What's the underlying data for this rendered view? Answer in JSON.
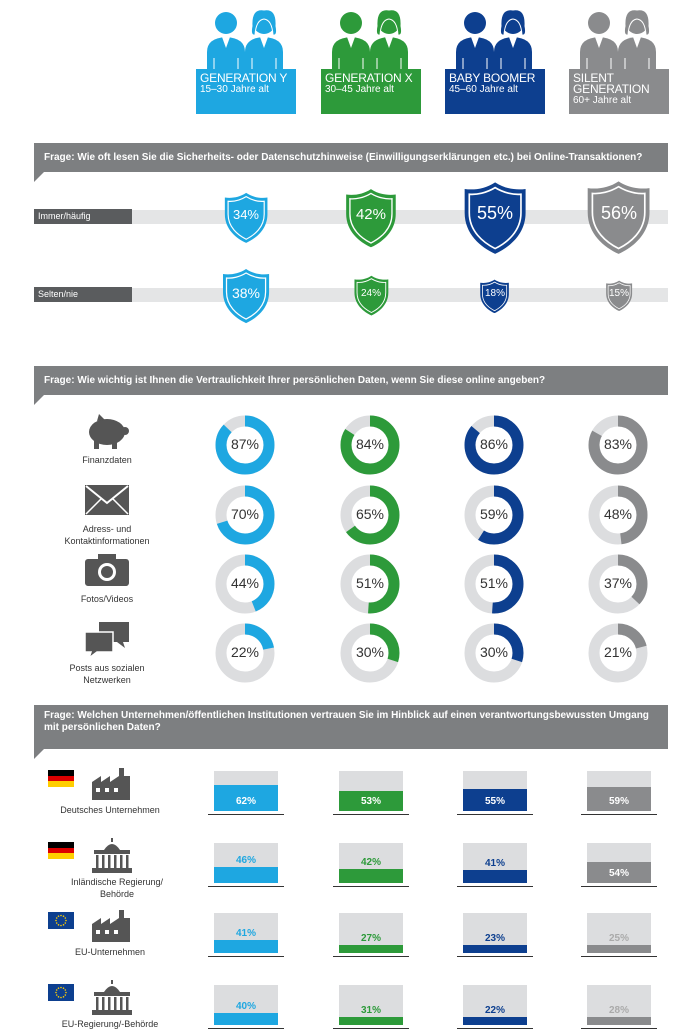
{
  "generations": [
    {
      "name": "GENERATION Y",
      "age": "15–30 Jahre alt",
      "color": "#1ea7e1"
    },
    {
      "name": "GENERATION X",
      "age": "30–45 Jahre alt",
      "color": "#2d9a3a"
    },
    {
      "name": "BABY BOOMER",
      "age": "45–60 Jahre alt",
      "color": "#0d3f8f"
    },
    {
      "name": "SILENT GENERATION",
      "age": "60+ Jahre alt",
      "color": "#8a8b8d"
    }
  ],
  "section1": {
    "question": "Frage:  Wie oft lesen Sie die Sicherheits- oder Datenschutzhinweise (Einwilligungserklärungen etc.) bei Online-Transaktionen?",
    "rows": [
      {
        "label": "Immer/häufig",
        "values": [
          "34%",
          "42%",
          "55%",
          "56%"
        ]
      },
      {
        "label": "Selten/nie",
        "values": [
          "38%",
          "24%",
          "18%",
          "15%"
        ]
      }
    ]
  },
  "section2": {
    "question": "Frage:  Wie wichtig ist Ihnen die Vertraulichkeit Ihrer persönlichen Daten, wenn Sie diese online angeben?",
    "rows": [
      {
        "label": "Finanzdaten",
        "icon": "piggy-bank-icon",
        "values": [
          "87%",
          "84%",
          "86%",
          "83%"
        ]
      },
      {
        "label": "Adress- und Kontaktinformationen",
        "icon": "envelope-icon",
        "values": [
          "70%",
          "65%",
          "59%",
          "48%"
        ]
      },
      {
        "label": "Fotos/Videos",
        "icon": "camera-icon",
        "values": [
          "44%",
          "51%",
          "51%",
          "37%"
        ]
      },
      {
        "label": "Posts aus sozialen Netzwerken",
        "icon": "speech-bubbles-icon",
        "values": [
          "22%",
          "30%",
          "30%",
          "21%"
        ]
      }
    ]
  },
  "section3": {
    "question": "Frage: Welchen Unternehmen/öffentlichen Institutionen vertrauen Sie im Hinblick auf einen verantwortungsbewussten Umgang mit persönlichen Daten?",
    "rows": [
      {
        "label": "Deutsches Unternehmen",
        "flag": "germany-flag-icon",
        "icon": "factory-icon",
        "values": [
          "62%",
          "53%",
          "55%",
          "59%"
        ]
      },
      {
        "label": "Inländische Regierung/ Behörde",
        "flag": "germany-flag-icon",
        "icon": "government-building-icon",
        "values": [
          "46%",
          "42%",
          "41%",
          "54%"
        ]
      },
      {
        "label": "EU-Unternehmen",
        "flag": "eu-flag-icon",
        "icon": "factory-icon",
        "values": [
          "41%",
          "27%",
          "23%",
          "25%"
        ]
      },
      {
        "label": "EU-Regierung/-Behörde",
        "flag": "eu-flag-icon",
        "icon": "government-building-icon",
        "values": [
          "40%",
          "31%",
          "22%",
          "28%"
        ]
      }
    ]
  },
  "chart_data": [
    {
      "type": "bar",
      "title": "Wie oft lesen Sie die Sicherheits- oder Datenschutzhinweise (Einwilligungserklärungen etc.) bei Online-Transaktionen?",
      "categories": [
        "GENERATION Y",
        "GENERATION X",
        "BABY BOOMER",
        "SILENT GENERATION"
      ],
      "series": [
        {
          "name": "Immer/häufig",
          "values": [
            34,
            42,
            55,
            56
          ]
        },
        {
          "name": "Selten/nie",
          "values": [
            38,
            24,
            18,
            15
          ]
        }
      ]
    },
    {
      "type": "pie",
      "title": "Wie wichtig ist Ihnen die Vertraulichkeit Ihrer persönlichen Daten, wenn Sie diese online angeben?",
      "categories": [
        "GENERATION Y",
        "GENERATION X",
        "BABY BOOMER",
        "SILENT GENERATION"
      ],
      "series": [
        {
          "name": "Finanzdaten",
          "values": [
            87,
            84,
            86,
            83
          ]
        },
        {
          "name": "Adress- und Kontaktinformationen",
          "values": [
            70,
            65,
            59,
            48
          ]
        },
        {
          "name": "Fotos/Videos",
          "values": [
            44,
            51,
            51,
            37
          ]
        },
        {
          "name": "Posts aus sozialen Netzwerken",
          "values": [
            22,
            30,
            30,
            21
          ]
        }
      ]
    },
    {
      "type": "bar",
      "title": "Welchen Unternehmen/öffentlichen Institutionen vertrauen Sie im Hinblick auf einen verantwortungsbewussten Umgang mit persönlichen Daten?",
      "categories": [
        "GENERATION Y",
        "GENERATION X",
        "BABY BOOMER",
        "SILENT GENERATION"
      ],
      "series": [
        {
          "name": "Deutsches Unternehmen",
          "values": [
            62,
            53,
            55,
            59
          ]
        },
        {
          "name": "Inländische Regierung/ Behörde",
          "values": [
            46,
            42,
            41,
            54
          ]
        },
        {
          "name": "EU-Unternehmen",
          "values": [
            41,
            27,
            23,
            25
          ]
        },
        {
          "name": "EU-Regierung/-Behörde",
          "values": [
            40,
            31,
            22,
            28
          ]
        }
      ],
      "ylim": [
        0,
        100
      ]
    }
  ]
}
